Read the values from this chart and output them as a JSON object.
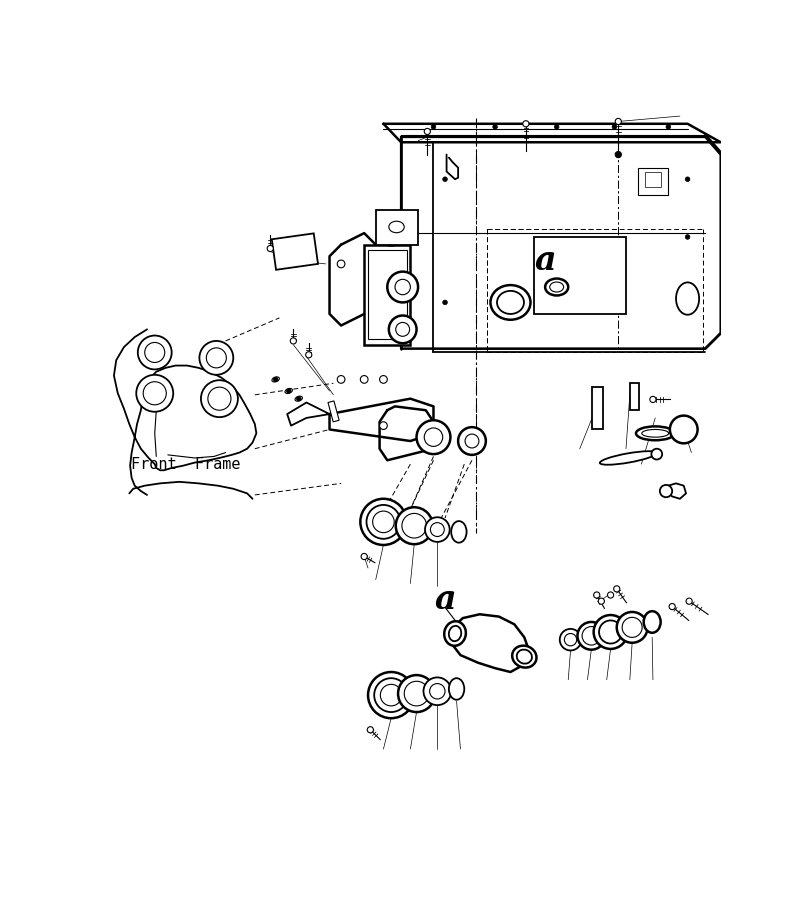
{
  "background_color": "#ffffff",
  "line_color": "#000000",
  "text_color": "#000000",
  "fig_width": 8.03,
  "fig_height": 9.16,
  "dpi": 100,
  "front_frame_label": "Front  Frame",
  "label_a_upper": "a",
  "label_a_lower": "a",
  "font_size_label": 10,
  "font_size_a": 20,
  "lw_thick": 1.8,
  "lw_main": 1.3,
  "lw_thin": 0.8,
  "lw_ultra_thin": 0.5
}
